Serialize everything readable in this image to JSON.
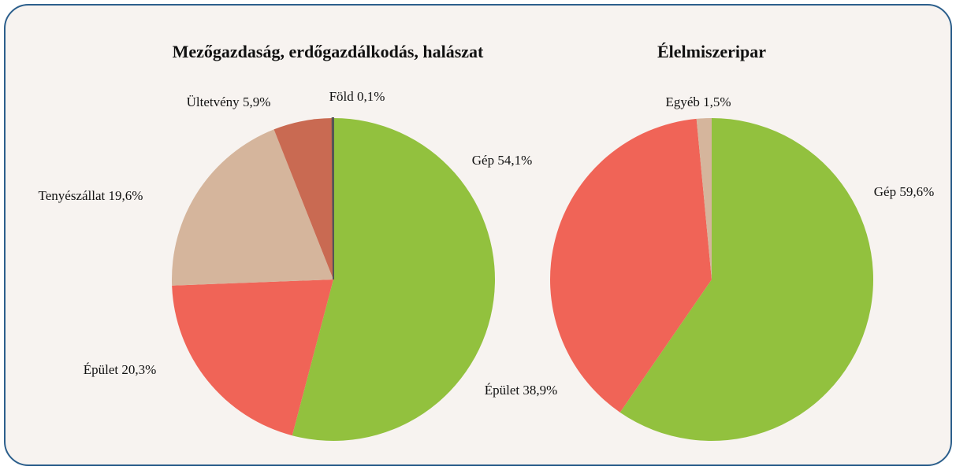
{
  "chart_data": [
    {
      "type": "pie",
      "title": "Mezőgazdaság, erdőgazdálkodás, halászat",
      "categories": [
        "Gép",
        "Épület",
        "Tenyészállat",
        "Ültetvény",
        "Föld"
      ],
      "values": [
        54.1,
        20.3,
        19.6,
        5.9,
        0.1
      ],
      "value_labels": [
        "54,1%",
        "20,3%",
        "19,6%",
        "5,9%",
        "0,1%"
      ],
      "colors": [
        "#92c13e",
        "#f06457",
        "#d5b59c",
        "#c96a52",
        "#555555"
      ]
    },
    {
      "type": "pie",
      "title": "Élelmiszeripar",
      "categories": [
        "Gép",
        "Épület",
        "Egyéb"
      ],
      "values": [
        59.6,
        38.9,
        1.5
      ],
      "value_labels": [
        "59,6%",
        "38,9%",
        "1,5%"
      ],
      "colors": [
        "#92c13e",
        "#f06457",
        "#d5b59c"
      ]
    }
  ]
}
